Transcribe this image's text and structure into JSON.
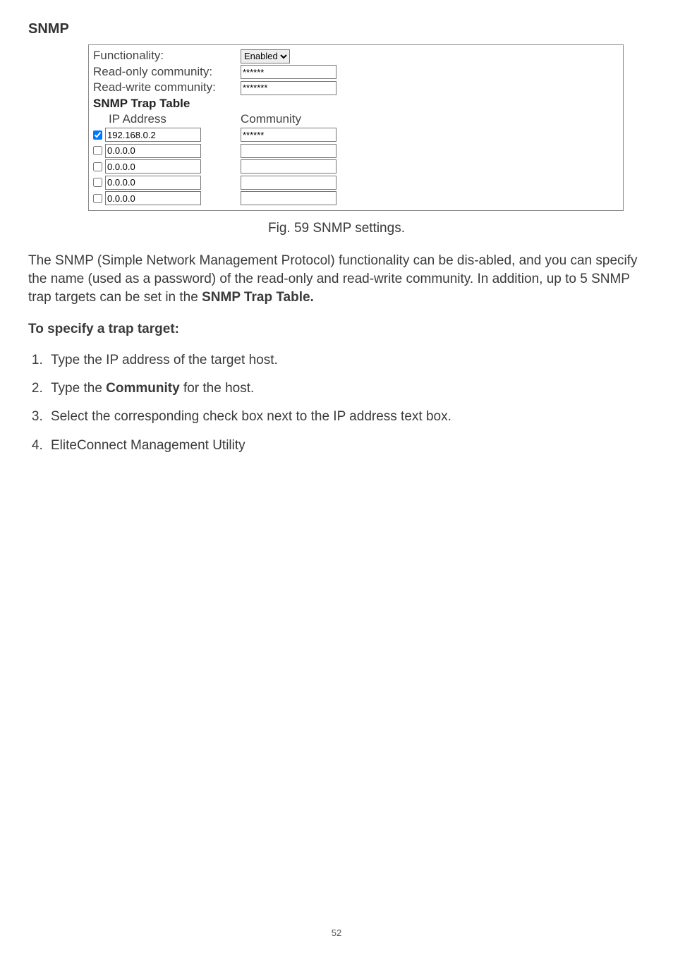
{
  "heading": "SNMP",
  "panel": {
    "functionality_label": "Functionality:",
    "functionality_value": "Enabled",
    "read_only_label": "Read-only community:",
    "read_only_value": "******",
    "read_write_label": "Read-write community:",
    "read_write_value": "*******",
    "table_title": "SNMP Trap Table",
    "col_ip": "IP Address",
    "col_comm": "Community",
    "rows": [
      {
        "checked": true,
        "ip": "192.168.0.2",
        "comm": "******"
      },
      {
        "checked": false,
        "ip": "0.0.0.0",
        "comm": ""
      },
      {
        "checked": false,
        "ip": "0.0.0.0",
        "comm": ""
      },
      {
        "checked": false,
        "ip": "0.0.0.0",
        "comm": ""
      },
      {
        "checked": false,
        "ip": "0.0.0.0",
        "comm": ""
      }
    ]
  },
  "caption": "Fig. 59 SNMP settings.",
  "paragraph_parts": {
    "p1a": "The SNMP (Simple Network Management Protocol) functionality can be dis-abled, and you can specify the name (used as a password) of the read-only and read-write community. In addition, up to 5 SNMP trap targets can be set in the ",
    "p1b": "SNMP Trap Table."
  },
  "subheading": "To specify a trap target:",
  "steps": {
    "s1": "Type the IP address of the target host.",
    "s2a": "Type the ",
    "s2b": "Community",
    "s2c": " for the host.",
    "s3": "Select the corresponding check box next to the IP address text box.",
    "s4": "EliteConnect Management Utility"
  },
  "page_number": "52"
}
